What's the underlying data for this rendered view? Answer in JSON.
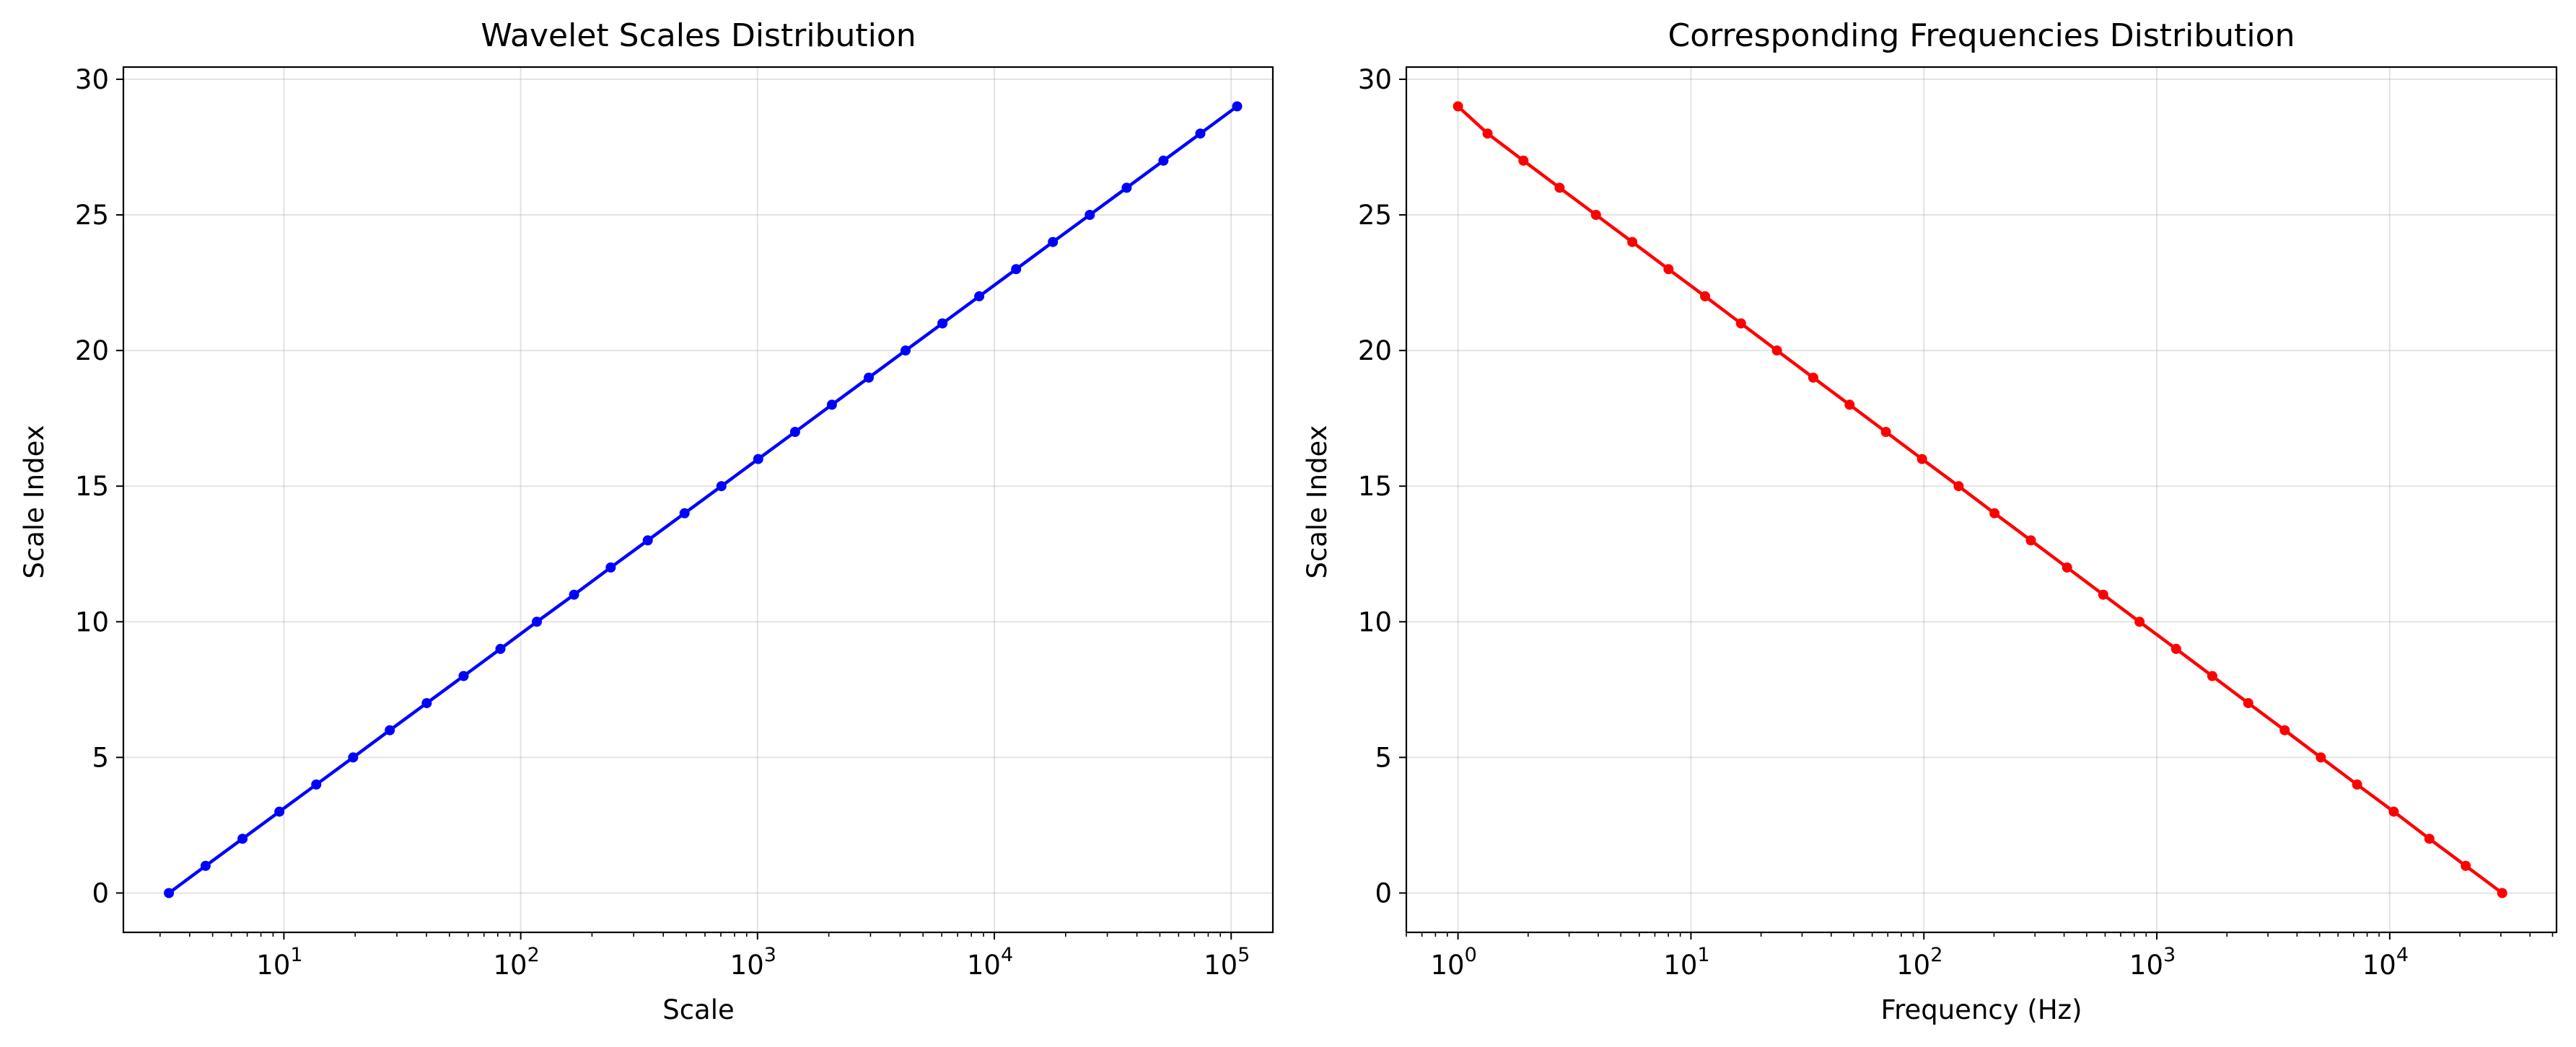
{
  "chart_data": [
    {
      "type": "line",
      "title": "Wavelet Scales Distribution",
      "xlabel": "Scale",
      "ylabel": "Scale Index",
      "xscale": "log",
      "xlim": [
        2.1,
        150000
      ],
      "ylim": [
        -1.45,
        30.45
      ],
      "yticks": [
        "0",
        "5",
        "10",
        "15",
        "20",
        "25",
        "30"
      ],
      "xticks": [
        {
          "base": "10",
          "exp": "1"
        },
        {
          "base": "10",
          "exp": "2"
        },
        {
          "base": "10",
          "exp": "3"
        },
        {
          "base": "10",
          "exp": "4"
        },
        {
          "base": "10",
          "exp": "5"
        }
      ],
      "grid": true,
      "color": "#0000ff",
      "marker": "circle",
      "series": [
        {
          "x": [
            3.27,
            4.67,
            6.69,
            9.57,
            13.7,
            19.6,
            28.0,
            40.1,
            57.4,
            82.1,
            117,
            168,
            240,
            344,
            492,
            704,
            1007,
            1441,
            2061,
            2949,
            4220,
            6037,
            8637,
            12358,
            17681,
            25297,
            36193,
            51783,
            74088,
            106000
          ],
          "y": [
            0,
            1,
            2,
            3,
            4,
            5,
            6,
            7,
            8,
            9,
            10,
            11,
            12,
            13,
            14,
            15,
            16,
            17,
            18,
            19,
            20,
            21,
            22,
            23,
            24,
            25,
            26,
            27,
            28,
            29
          ]
        }
      ]
    },
    {
      "type": "line",
      "title": "Corresponding Frequencies Distribution",
      "xlabel": "Frequency (Hz)",
      "ylabel": "Scale Index",
      "xscale": "log",
      "xlim": [
        0.6,
        52000
      ],
      "ylim": [
        -1.45,
        30.45
      ],
      "yticks": [
        "0",
        "5",
        "10",
        "15",
        "20",
        "25",
        "30"
      ],
      "xticks": [
        {
          "base": "10",
          "exp": "0"
        },
        {
          "base": "10",
          "exp": "1"
        },
        {
          "base": "10",
          "exp": "2"
        },
        {
          "base": "10",
          "exp": "3"
        },
        {
          "base": "10",
          "exp": "4"
        }
      ],
      "grid": true,
      "color": "#ff0000",
      "marker": "circle",
      "series": [
        {
          "x": [
            30400,
            21200,
            14800,
            10400,
            7240,
            5060,
            3540,
            2470,
            1730,
            1210,
            843,
            589,
            412,
            288,
            201,
            141,
            98.2,
            68.7,
            48.0,
            33.5,
            23.4,
            16.4,
            11.5,
            8.01,
            5.6,
            3.91,
            2.73,
            1.91,
            1.34,
            1.0
          ],
          "y": [
            0,
            1,
            2,
            3,
            4,
            5,
            6,
            7,
            8,
            9,
            10,
            11,
            12,
            13,
            14,
            15,
            16,
            17,
            18,
            19,
            20,
            21,
            22,
            23,
            24,
            25,
            26,
            27,
            28,
            29
          ]
        }
      ]
    }
  ]
}
